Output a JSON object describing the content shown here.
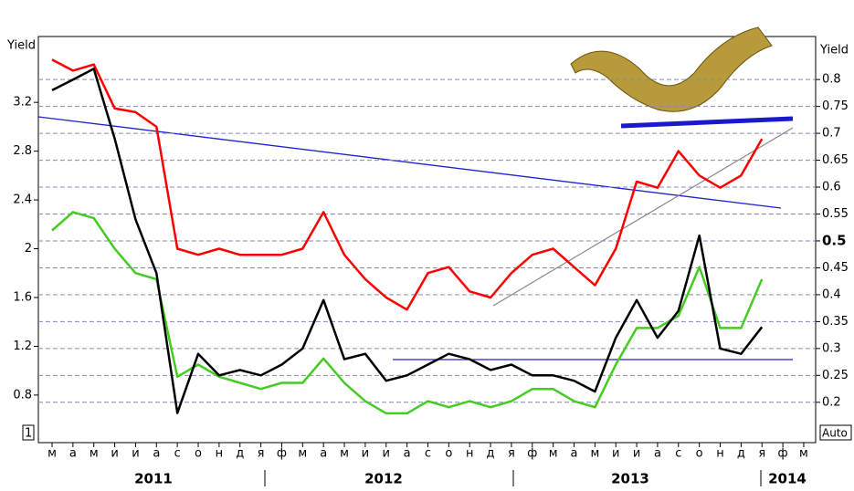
{
  "chart_data": {
    "type": "line",
    "y_label": "Yield",
    "y2_label": "Yield",
    "categories": [
      "м",
      "а",
      "м",
      "и",
      "и",
      "а",
      "с",
      "о",
      "н",
      "д",
      "я",
      "ф",
      "м",
      "а",
      "м",
      "и",
      "и",
      "а",
      "с",
      "о",
      "н",
      "д",
      "я",
      "ф",
      "м",
      "а",
      "м",
      "и",
      "и",
      "а",
      "с",
      "о",
      "н",
      "д",
      "я",
      "ф",
      "м"
    ],
    "year_labels": [
      "2011",
      "2012",
      "2013",
      "2014"
    ],
    "ylim": [
      0.41,
      3.74
    ],
    "yticks": [
      0.8,
      1.2,
      1.6,
      2.0,
      2.4,
      2.8,
      3.2
    ],
    "y2lim": [
      0.125,
      0.88
    ],
    "y2ticks": [
      0.2,
      0.25,
      0.3,
      0.35,
      0.4,
      0.45,
      0.5,
      0.55,
      0.6,
      0.65,
      0.7,
      0.75,
      0.8
    ],
    "grid": true,
    "pane_label": "1",
    "scale_label": "Auto",
    "series": [
      {
        "name": "red",
        "color": "#ff0000",
        "values": [
          3.55,
          3.46,
          3.51,
          3.15,
          3.12,
          3.0,
          2.0,
          1.95,
          2.0,
          1.95,
          1.95,
          1.95,
          2.0,
          2.3,
          1.95,
          1.75,
          1.6,
          1.5,
          1.8,
          1.85,
          1.65,
          1.6,
          1.8,
          1.95,
          2.0,
          1.85,
          1.7,
          2.0,
          2.55,
          2.5,
          2.8,
          2.6,
          2.5,
          2.6,
          2.9,
          null,
          null
        ]
      },
      {
        "name": "green",
        "color": "#44cc22",
        "values": [
          2.15,
          2.3,
          2.25,
          2.0,
          1.8,
          1.75,
          0.95,
          1.05,
          0.95,
          0.9,
          0.85,
          0.9,
          0.9,
          1.1,
          0.9,
          0.75,
          0.65,
          0.65,
          0.75,
          0.7,
          0.75,
          0.7,
          0.75,
          0.85,
          0.85,
          0.75,
          0.7,
          1.05,
          1.35,
          1.35,
          1.45,
          1.85,
          1.35,
          1.35,
          1.75,
          null,
          null
        ]
      },
      {
        "name": "black",
        "color": "#000000",
        "axis": "y2",
        "values": [
          0.78,
          0.8,
          0.82,
          0.69,
          0.54,
          0.44,
          0.18,
          0.29,
          0.25,
          0.26,
          0.25,
          0.27,
          0.3,
          0.39,
          0.28,
          0.29,
          0.24,
          0.25,
          0.27,
          0.29,
          0.28,
          0.26,
          0.27,
          0.25,
          0.25,
          0.24,
          0.22,
          0.32,
          0.39,
          0.32,
          0.37,
          0.51,
          0.3,
          0.29,
          0.34,
          null,
          null
        ]
      }
    ]
  }
}
